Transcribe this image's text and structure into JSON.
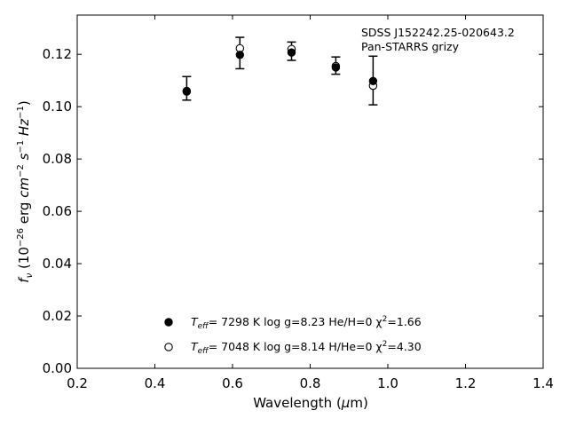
{
  "chart_data": {
    "type": "scatter",
    "title": "",
    "xlabel": "Wavelength (μm)",
    "ylabel": "fν (10⁻²⁶ erg cm⁻² s⁻¹ Hz⁻¹)",
    "xlim": [
      0.2,
      1.4
    ],
    "ylim": [
      0.0,
      0.135
    ],
    "x_ticks": [
      0.2,
      0.4,
      0.6,
      0.8,
      1.0,
      1.2,
      1.4
    ],
    "x_tick_labels": [
      "0.2",
      "0.4",
      "0.6",
      "0.8",
      "1.0",
      "1.2",
      "1.4"
    ],
    "y_ticks": [
      0.0,
      0.02,
      0.04,
      0.06,
      0.08,
      0.1,
      0.12
    ],
    "y_tick_labels": [
      "0.00",
      "0.02",
      "0.04",
      "0.06",
      "0.08",
      "0.10",
      "0.12"
    ],
    "grid": false,
    "annotations": [
      "SDSS J152242.25-020643.2",
      "Pan-STARRS grizy"
    ],
    "observed": {
      "x": [
        0.482,
        0.619,
        0.752,
        0.866,
        0.962
      ],
      "y": [
        0.107,
        0.1205,
        0.1212,
        0.1157,
        0.11
      ],
      "yerr": [
        0.0045,
        0.006,
        0.0035,
        0.0033,
        0.0093
      ]
    },
    "series": [
      {
        "name": "Teff=  7298 K  log g=8.23  He/H=0  χ²=1.66",
        "marker": "filled-circle",
        "x": [
          0.482,
          0.619,
          0.752,
          0.866,
          0.962
        ],
        "y": [
          0.106,
          0.1198,
          0.1207,
          0.115,
          0.1098
        ]
      },
      {
        "name": "Teff=  7048 K  log g=8.14  H/He=0  χ²=4.30",
        "marker": "open-circle",
        "x": [
          0.482,
          0.619,
          0.752,
          0.866,
          0.962
        ],
        "y": [
          0.1058,
          0.1223,
          0.122,
          0.1155,
          0.108
        ]
      }
    ],
    "legend": {
      "placement": "lower-center",
      "entries": [
        {
          "teff_label": "T",
          "teff_sub": "eff",
          "rest": "=  7298 K  log g=8.23  He/H=0  χ",
          "chi_exp": "2",
          "chi_val": "=1.66"
        },
        {
          "teff_label": "T",
          "teff_sub": "eff",
          "rest": "=  7048 K  log g=8.14  H/He=0  χ",
          "chi_exp": "2",
          "chi_val": "=4.30"
        }
      ]
    },
    "colors": {
      "marker": "#000000",
      "axis": "#000000",
      "background": "#ffffff"
    }
  }
}
